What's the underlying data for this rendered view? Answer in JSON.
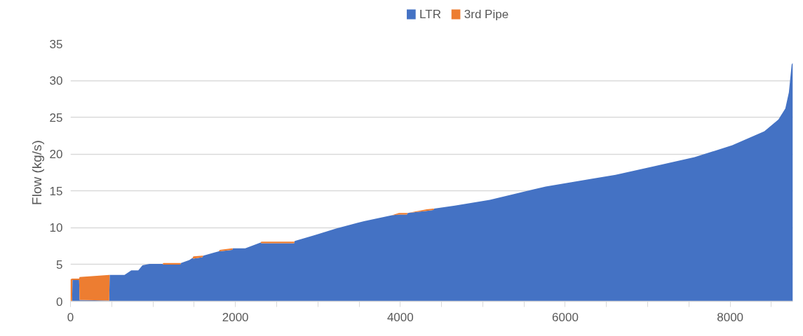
{
  "chart_data": {
    "type": "area",
    "stacked": true,
    "ylabel": "Flow (kg/s)",
    "x": [
      0,
      20,
      24,
      105,
      110,
      470,
      475,
      655,
      737,
      822,
      873,
      958,
      1119,
      1125,
      1331,
      1340,
      1441,
      1480,
      1490,
      1600,
      1610,
      1737,
      1800,
      1810,
      1960,
      1970,
      2119,
      2305,
      2315,
      2712,
      2720,
      2966,
      3220,
      3559,
      3898,
      3983,
      4080,
      4090,
      4320,
      4400,
      4410,
      4661,
      5085,
      5763,
      6610,
      7059,
      7568,
      8025,
      8415,
      8585,
      8669,
      8712,
      8746,
      8760
    ],
    "series": [
      {
        "name": "LTR",
        "color": "#4472c4",
        "values": [
          0,
          0,
          2.9,
          2.9,
          0.2,
          0.1,
          3.6,
          3.6,
          4.2,
          4.2,
          4.9,
          5.1,
          5.1,
          5.0,
          5.0,
          5.2,
          5.6,
          5.9,
          5.8,
          6.0,
          6.2,
          6.6,
          6.8,
          6.8,
          7.0,
          7.2,
          7.2,
          8.0,
          7.9,
          7.9,
          8.2,
          9.0,
          9.9,
          10.9,
          11.7,
          11.8,
          11.8,
          12.0,
          12.3,
          12.4,
          12.6,
          13.0,
          13.8,
          15.6,
          17.2,
          18.3,
          19.6,
          21.2,
          23.1,
          24.7,
          26.2,
          28.4,
          32.2,
          32.4
        ]
      },
      {
        "name": "3rd Pipe",
        "color": "#ed7d31",
        "values": [
          3.0,
          3.1,
          0.2,
          0.2,
          3.1,
          3.5,
          0,
          null,
          null,
          null,
          null,
          null,
          0,
          0.2,
          0.2,
          0,
          null,
          0,
          0.3,
          0.2,
          0,
          null,
          0,
          0.2,
          0.2,
          0,
          null,
          0,
          0.2,
          0.2,
          0,
          null,
          null,
          null,
          0,
          0.2,
          0.2,
          0,
          0.2,
          0.2,
          0,
          null,
          null,
          null,
          null,
          null,
          null,
          null,
          null,
          null,
          null,
          null,
          null,
          null
        ]
      }
    ],
    "xlim": [
      0,
      8760
    ],
    "xticks": [
      0,
      {
        "value": 500,
        "label": null
      },
      {
        "value": 1000,
        "label": null
      },
      {
        "value": 1500,
        "label": null
      },
      2000,
      {
        "value": 2500,
        "label": null
      },
      {
        "value": 3000,
        "label": null
      },
      {
        "value": 3500,
        "label": null
      },
      4000,
      {
        "value": 4500,
        "label": null
      },
      {
        "value": 5000,
        "label": null
      },
      {
        "value": 5500,
        "label": null
      },
      6000,
      {
        "value": 6500,
        "label": null
      },
      {
        "value": 7000,
        "label": null
      },
      {
        "value": 7500,
        "label": null
      },
      8000,
      {
        "value": 8500,
        "label": null
      }
    ],
    "ylim": [
      0,
      35
    ],
    "yticks": [
      0,
      5,
      10,
      15,
      20,
      25,
      30,
      35
    ],
    "grid": "y",
    "legend": "top"
  }
}
